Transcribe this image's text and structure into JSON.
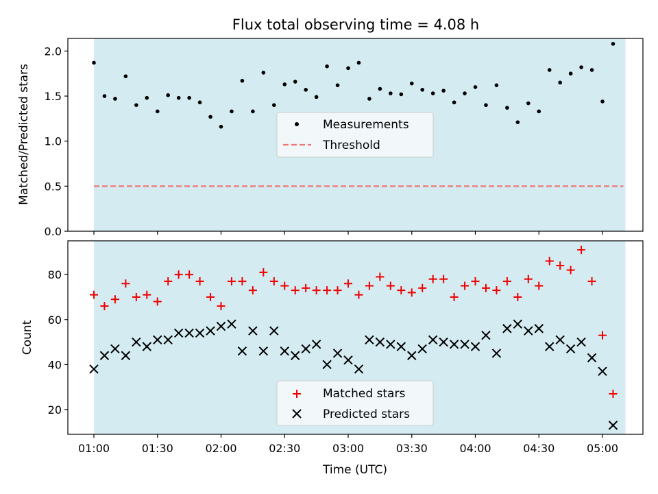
{
  "title": "Flux total observing time = 4.08 h",
  "colors": {
    "shade": "#d4ebf1",
    "measure": "#000000",
    "threshold": "#f07575",
    "matched": "#ee0000",
    "predicted": "#000000"
  },
  "chart_data": [
    {
      "type": "scatter",
      "ylabel": "Matched/Predicted stars",
      "ylim": [
        0,
        2.14
      ],
      "yticks": [
        "0.0",
        "0.5",
        "1.0",
        "1.5",
        "2.0"
      ],
      "legend": {
        "placement": "center",
        "entries": [
          "Measurements",
          "Threshold"
        ]
      },
      "threshold": 0.5,
      "series": [
        {
          "name": "Measurements",
          "x": [
            0,
            5,
            10,
            15,
            20,
            25,
            30,
            35,
            40,
            45,
            50,
            55,
            60,
            65,
            70,
            75,
            80,
            85,
            90,
            95,
            100,
            105,
            110,
            115,
            120,
            125,
            130,
            135,
            140,
            145,
            150,
            155,
            160,
            165,
            170,
            175,
            180,
            185,
            190,
            195,
            200,
            205,
            210,
            215,
            220,
            225,
            230,
            235,
            240,
            245
          ],
          "y": [
            1.87,
            1.5,
            1.47,
            1.72,
            1.4,
            1.48,
            1.33,
            1.51,
            1.48,
            1.48,
            1.43,
            1.27,
            1.16,
            1.33,
            1.67,
            1.33,
            1.76,
            1.4,
            1.63,
            1.66,
            1.57,
            1.49,
            1.83,
            1.62,
            1.81,
            1.87,
            1.47,
            1.58,
            1.53,
            1.52,
            1.64,
            1.57,
            1.53,
            1.56,
            1.43,
            1.53,
            1.6,
            1.4,
            1.62,
            1.37,
            1.21,
            1.42,
            1.33,
            1.79,
            1.65,
            1.75,
            1.82,
            1.79,
            1.44,
            2.08
          ]
        }
      ]
    },
    {
      "type": "scatter",
      "xlabel": "Time (UTC)",
      "ylabel": "Count",
      "ylim": [
        9,
        95
      ],
      "yticks": [
        "20",
        "40",
        "60",
        "80"
      ],
      "xticks": [
        "01:00",
        "01:30",
        "02:00",
        "02:30",
        "03:00",
        "03:30",
        "04:00",
        "04:30",
        "05:00"
      ],
      "legend": {
        "placement": "lower center",
        "entries": [
          "Matched stars",
          "Predicted stars"
        ]
      },
      "series": [
        {
          "name": "Matched stars",
          "x": [
            0,
            5,
            10,
            15,
            20,
            25,
            30,
            35,
            40,
            45,
            50,
            55,
            60,
            65,
            70,
            75,
            80,
            85,
            90,
            95,
            100,
            105,
            110,
            115,
            120,
            125,
            130,
            135,
            140,
            145,
            150,
            155,
            160,
            165,
            170,
            175,
            180,
            185,
            190,
            195,
            200,
            205,
            210,
            215,
            220,
            225,
            230,
            235,
            240,
            245
          ],
          "y": [
            71,
            66,
            69,
            76,
            70,
            71,
            68,
            77,
            80,
            80,
            77,
            70,
            66,
            77,
            77,
            73,
            81,
            77,
            75,
            73,
            74,
            73,
            73,
            73,
            76,
            71,
            75,
            79,
            75,
            73,
            72,
            74,
            78,
            78,
            70,
            75,
            77,
            74,
            73,
            77,
            70,
            78,
            75,
            86,
            84,
            82,
            91,
            77,
            53,
            27
          ]
        },
        {
          "name": "Predicted stars",
          "x": [
            0,
            5,
            10,
            15,
            20,
            25,
            30,
            35,
            40,
            45,
            50,
            55,
            60,
            65,
            70,
            75,
            80,
            85,
            90,
            95,
            100,
            105,
            110,
            115,
            120,
            125,
            130,
            135,
            140,
            145,
            150,
            155,
            160,
            165,
            170,
            175,
            180,
            185,
            190,
            195,
            200,
            205,
            210,
            215,
            220,
            225,
            230,
            235,
            240,
            245
          ],
          "y": [
            38,
            44,
            47,
            44,
            50,
            48,
            51,
            51,
            54,
            54,
            54,
            55,
            57,
            58,
            46,
            55,
            46,
            55,
            46,
            44,
            47,
            49,
            40,
            45,
            42,
            38,
            51,
            50,
            49,
            48,
            44,
            47,
            51,
            50,
            49,
            49,
            48,
            53,
            45,
            56,
            58,
            55,
            56,
            48,
            51,
            47,
            50,
            43,
            37,
            13
          ]
        }
      ]
    }
  ]
}
